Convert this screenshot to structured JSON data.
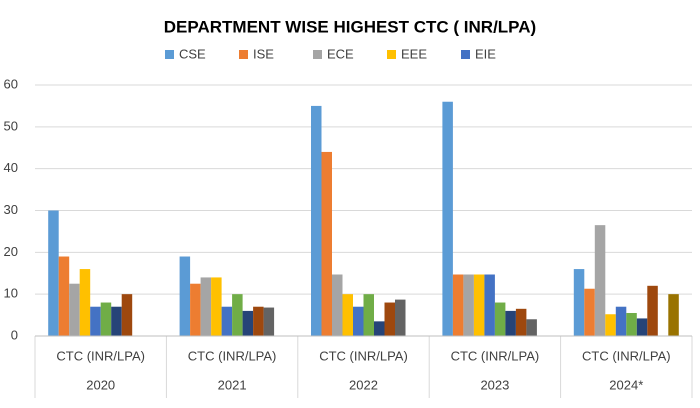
{
  "chart_data": {
    "type": "bar",
    "title": "DEPARTMENT WISE HIGHEST CTC ( INR/LPA)",
    "categories": [
      "2020",
      "2021",
      "2022",
      "2023",
      "2024*"
    ],
    "subcategories": [
      "CTC (INR/LPA)",
      "CTC (INR/LPA)",
      "CTC (INR/LPA)",
      "CTC (INR/LPA)",
      "CTC (INR/LPA)"
    ],
    "series": [
      {
        "name": "CSE",
        "color": "#5b9bd5",
        "values": [
          30,
          19,
          55,
          56,
          16
        ]
      },
      {
        "name": "ISE",
        "color": "#ed7d31",
        "values": [
          19,
          12.5,
          44,
          14.7,
          11.3
        ]
      },
      {
        "name": "ECE",
        "color": "#a5a5a5",
        "values": [
          12.5,
          14,
          14.7,
          14.7,
          26.5
        ]
      },
      {
        "name": "EEE",
        "color": "#ffc000",
        "values": [
          16,
          14,
          10,
          14.7,
          5.2
        ]
      },
      {
        "name": "EIE",
        "color": "#4472c4",
        "values": [
          7,
          7,
          7,
          14.7,
          7
        ]
      },
      {
        "color": "#70ad47",
        "values": [
          8,
          10,
          10,
          8,
          5.5
        ]
      },
      {
        "color": "#264478",
        "values": [
          7,
          6,
          3.5,
          6,
          4.2
        ]
      },
      {
        "color": "#9e480e",
        "values": [
          10,
          7,
          8,
          6.5,
          12
        ]
      },
      {
        "color": "#636363",
        "values": [
          null,
          6.8,
          8.7,
          4,
          null
        ]
      },
      {
        "color": "#997300",
        "values": [
          null,
          null,
          null,
          null,
          10
        ]
      }
    ],
    "ylim": [
      0,
      60
    ],
    "yticks": [
      0,
      10,
      20,
      30,
      40,
      50,
      60
    ],
    "grid": true,
    "legend": "top"
  }
}
